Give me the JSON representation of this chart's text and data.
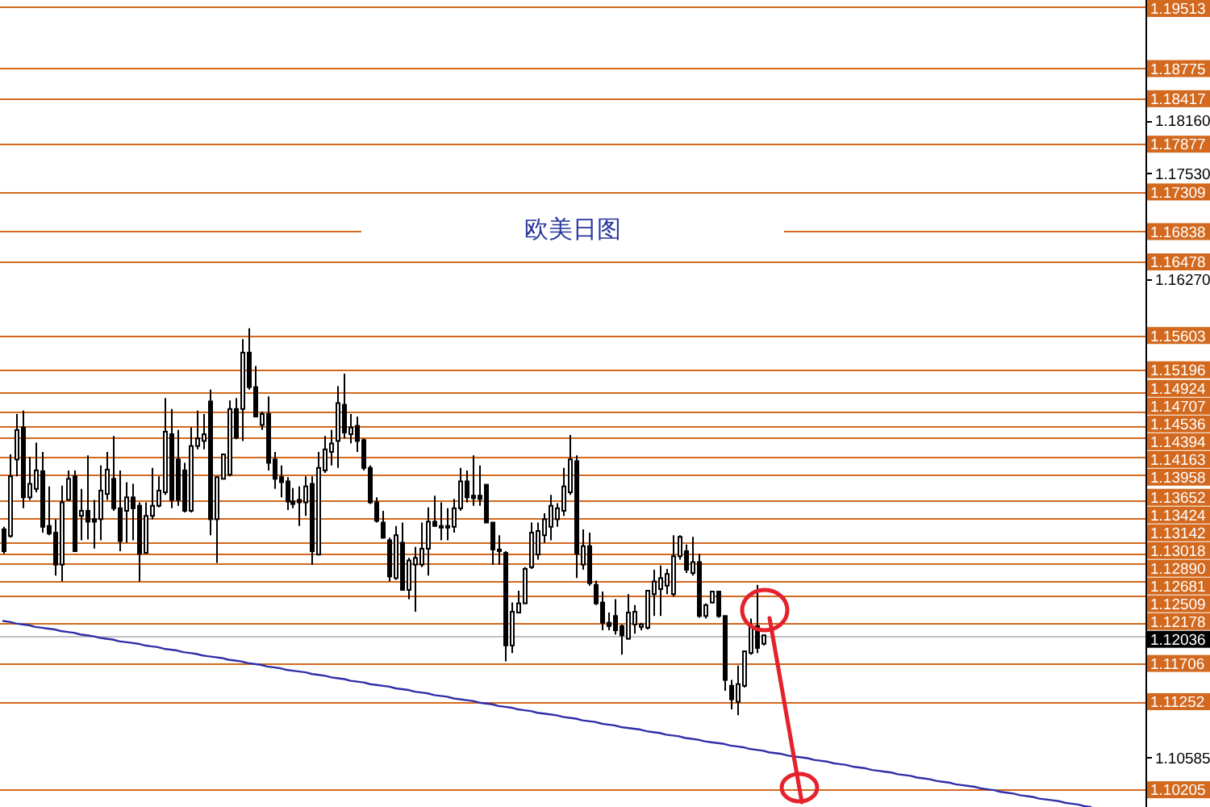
{
  "chart_data": {
    "type": "candlestick",
    "title": "欧美日图",
    "categories": [
      null,
      null,
      null,
      null,
      null,
      null,
      null,
      null,
      null,
      null,
      null,
      null,
      null,
      null,
      null,
      null,
      null,
      null,
      null,
      null,
      null,
      null,
      null,
      null,
      null,
      null,
      null,
      null,
      null,
      null,
      null,
      null,
      null,
      null,
      null,
      null,
      null,
      null,
      null,
      null,
      null,
      null,
      null,
      null,
      null,
      null,
      null,
      null,
      null,
      null,
      null,
      null,
      null,
      null,
      null,
      null,
      null,
      null,
      null,
      null,
      null,
      null,
      null,
      null,
      null,
      null,
      null,
      null,
      null,
      null,
      null,
      null,
      null,
      null,
      null,
      null,
      null,
      null,
      null,
      null,
      null,
      null,
      null,
      null,
      null,
      null,
      null,
      null,
      null,
      null,
      null,
      null,
      null,
      null,
      null,
      null,
      null,
      null,
      null,
      null,
      null,
      null,
      null,
      null,
      null,
      null,
      null,
      null,
      null,
      null,
      null,
      null,
      null,
      null,
      null,
      null,
      null,
      null,
      null,
      null,
      null,
      null,
      null,
      null,
      null,
      null,
      null,
      null,
      null,
      null,
      null,
      null,
      null,
      null,
      null,
      null,
      null,
      null,
      null,
      null,
      null,
      null,
      null,
      null,
      null,
      null,
      null,
      null,
      null,
      null,
      null,
      null,
      null,
      null,
      null,
      null,
      null,
      null,
      null,
      null,
      null,
      null,
      null,
      null,
      null,
      null,
      null,
      null,
      null,
      null,
      null,
      null,
      null,
      null,
      null,
      null,
      null,
      null
    ],
    "ohlc": [
      [
        1.133,
        1.1333,
        1.1301,
        1.1304
      ],
      [
        1.1322,
        1.1419,
        1.132,
        1.1393
      ],
      [
        1.1413,
        1.1467,
        1.1393,
        1.1448
      ],
      [
        1.1451,
        1.1471,
        1.1355,
        1.1368
      ],
      [
        1.1368,
        1.1416,
        1.1365,
        1.1384
      ],
      [
        1.1378,
        1.1433,
        1.1374,
        1.14
      ],
      [
        1.1399,
        1.1422,
        1.1326,
        1.1333
      ],
      [
        1.1334,
        1.1381,
        1.1323,
        1.1325
      ],
      [
        1.1326,
        1.1342,
        1.1275,
        1.1288
      ],
      [
        1.1288,
        1.1382,
        1.1268,
        1.1362
      ],
      [
        1.1365,
        1.14,
        1.1365,
        1.139
      ],
      [
        1.1393,
        1.14,
        1.1304,
        1.1304
      ],
      [
        1.1346,
        1.1378,
        1.1317,
        1.1352
      ],
      [
        1.1352,
        1.1418,
        1.1318,
        1.1339
      ],
      [
        1.1342,
        1.1365,
        1.1307,
        1.1339
      ],
      [
        1.1342,
        1.1406,
        1.1317,
        1.1376
      ],
      [
        1.1372,
        1.1422,
        1.1365,
        1.1401
      ],
      [
        1.139,
        1.1441,
        1.1352,
        1.1355
      ],
      [
        1.1355,
        1.14,
        1.1304,
        1.1316
      ],
      [
        1.1352,
        1.1386,
        1.1314,
        1.1368
      ],
      [
        1.1368,
        1.1384,
        1.1317,
        1.1355
      ],
      [
        1.1358,
        1.1362,
        1.1268,
        1.1301
      ],
      [
        1.1302,
        1.1362,
        1.1301,
        1.1346
      ],
      [
        1.1346,
        1.1403,
        1.1342,
        1.1358
      ],
      [
        1.1358,
        1.1393,
        1.1356,
        1.1376
      ],
      [
        1.1374,
        1.1486,
        1.1371,
        1.1446
      ],
      [
        1.1443,
        1.1473,
        1.1355,
        1.1365
      ],
      [
        1.1413,
        1.1448,
        1.1358,
        1.1365
      ],
      [
        1.14,
        1.1409,
        1.135,
        1.1352
      ],
      [
        1.1352,
        1.1451,
        1.135,
        1.1429
      ],
      [
        1.1429,
        1.1471,
        1.1425,
        1.1438
      ],
      [
        1.1435,
        1.1467,
        1.1425,
        1.1443
      ],
      [
        1.1482,
        1.1496,
        1.1323,
        1.1342
      ],
      [
        1.1342,
        1.1393,
        1.129,
        1.1392
      ],
      [
        1.139,
        1.142,
        1.139,
        1.1419
      ],
      [
        1.1395,
        1.1483,
        1.1393,
        1.1473
      ],
      [
        1.1473,
        1.1486,
        1.1437,
        1.1439
      ],
      [
        1.1473,
        1.1556,
        1.1435,
        1.154
      ],
      [
        1.154,
        1.1569,
        1.1496,
        1.1499
      ],
      [
        1.1499,
        1.1524,
        1.1464,
        1.1464
      ],
      [
        1.1454,
        1.147,
        1.1448,
        1.1467
      ],
      [
        1.1467,
        1.1488,
        1.14,
        1.1409
      ],
      [
        1.1413,
        1.1422,
        1.1378,
        1.139
      ],
      [
        1.1392,
        1.1406,
        1.1368,
        1.1386
      ],
      [
        1.1387,
        1.1392,
        1.1353,
        1.1363
      ],
      [
        1.1363,
        1.1379,
        1.1355,
        1.136
      ],
      [
        1.1365,
        1.1381,
        1.1334,
        1.1362
      ],
      [
        1.1362,
        1.1393,
        1.1346,
        1.1381
      ],
      [
        1.1384,
        1.1393,
        1.1288,
        1.1304
      ],
      [
        1.13,
        1.1422,
        1.1299,
        1.1403
      ],
      [
        1.14,
        1.1441,
        1.1397,
        1.1425
      ],
      [
        1.1422,
        1.1448,
        1.1406,
        1.1432
      ],
      [
        1.1435,
        1.15,
        1.1403,
        1.148
      ],
      [
        1.1478,
        1.1515,
        1.1438,
        1.1445
      ],
      [
        1.1443,
        1.1467,
        1.1432,
        1.1451
      ],
      [
        1.1453,
        1.1464,
        1.1422,
        1.1435
      ],
      [
        1.1436,
        1.1438,
        1.14,
        1.1403
      ],
      [
        1.1403,
        1.1406,
        1.136,
        1.1362
      ],
      [
        1.1362,
        1.1368,
        1.1338,
        1.134
      ],
      [
        1.1338,
        1.1352,
        1.1319,
        1.132
      ],
      [
        1.1317,
        1.132,
        1.1268,
        1.1274
      ],
      [
        1.1272,
        1.1334,
        1.127,
        1.1323
      ],
      [
        1.1314,
        1.1338,
        1.1258,
        1.1258
      ],
      [
        1.1258,
        1.1296,
        1.1247,
        1.1293
      ],
      [
        1.1288,
        1.1309,
        1.1232,
        1.1296
      ],
      [
        1.1288,
        1.1338,
        1.1285,
        1.1307
      ],
      [
        1.1307,
        1.1356,
        1.1275,
        1.1339
      ],
      [
        1.1339,
        1.137,
        1.1333,
        1.1334
      ],
      [
        1.1334,
        1.1362,
        1.1317,
        1.1332
      ],
      [
        1.1332,
        1.1355,
        1.1317,
        1.1334
      ],
      [
        1.1333,
        1.1366,
        1.1326,
        1.1355
      ],
      [
        1.1355,
        1.1403,
        1.1352,
        1.1387
      ],
      [
        1.1387,
        1.14,
        1.1362,
        1.1368
      ],
      [
        1.137,
        1.1418,
        1.1358,
        1.1367
      ],
      [
        1.137,
        1.1406,
        1.1358,
        1.1366
      ],
      [
        1.1383,
        1.1383,
        1.1338,
        1.1338
      ],
      [
        1.1338,
        1.1338,
        1.1288,
        1.1306
      ],
      [
        1.1306,
        1.1323,
        1.1288,
        1.1305
      ],
      [
        1.1302,
        1.1304,
        1.1173,
        1.1192
      ],
      [
        1.1192,
        1.1243,
        1.1183,
        1.1232
      ],
      [
        1.1231,
        1.1257,
        1.1231,
        1.1242
      ],
      [
        1.1242,
        1.1285,
        1.1242,
        1.1283
      ],
      [
        1.1285,
        1.1338,
        1.1283,
        1.1326
      ],
      [
        1.13,
        1.1338,
        1.1294,
        1.1328
      ],
      [
        1.1323,
        1.1349,
        1.1314,
        1.1342
      ],
      [
        1.1333,
        1.1371,
        1.1317,
        1.1358
      ],
      [
        1.1342,
        1.1361,
        1.1333,
        1.1355
      ],
      [
        1.1352,
        1.1403,
        1.1346,
        1.1381
      ],
      [
        1.1374,
        1.1442,
        1.1371,
        1.1413
      ],
      [
        1.1411,
        1.1418,
        1.1272,
        1.1301
      ],
      [
        1.1288,
        1.133,
        1.1282,
        1.131
      ],
      [
        1.131,
        1.1326,
        1.1263,
        1.1266
      ],
      [
        1.1264,
        1.1269,
        1.124,
        1.1242
      ],
      [
        1.1243,
        1.1256,
        1.121,
        1.1219
      ],
      [
        1.1219,
        1.1231,
        1.121,
        1.1215
      ],
      [
        1.1227,
        1.1247,
        1.1205,
        1.121
      ],
      [
        1.1215,
        1.1217,
        1.1181,
        1.1204
      ],
      [
        1.12,
        1.1253,
        1.1199,
        1.1231
      ],
      [
        1.1217,
        1.124,
        1.1206,
        1.1232
      ],
      [
        1.1214,
        1.1219,
        1.121,
        1.1217
      ],
      [
        1.1213,
        1.1257,
        1.1211,
        1.1257
      ],
      [
        1.1253,
        1.1282,
        1.1227,
        1.1268
      ],
      [
        1.1259,
        1.1287,
        1.1227,
        1.1272
      ],
      [
        1.1263,
        1.1283,
        1.1253,
        1.1277
      ],
      [
        1.1253,
        1.1323,
        1.125,
        1.1298
      ],
      [
        1.1298,
        1.1323,
        1.1294,
        1.1321
      ],
      [
        1.1304,
        1.1312,
        1.1278,
        1.1282
      ],
      [
        1.1278,
        1.1321,
        1.1275,
        1.1291
      ],
      [
        1.1291,
        1.1301,
        1.1225,
        1.1227
      ],
      [
        1.1227,
        1.1242,
        1.1224,
        1.124
      ],
      [
        1.1243,
        1.1257,
        1.1242,
        1.1256
      ],
      [
        1.1256,
        1.1257,
        1.1225,
        1.1227
      ],
      [
        1.1227,
        1.1227,
        1.1138,
        1.1151
      ],
      [
        1.1144,
        1.1151,
        1.1116,
        1.1128
      ],
      [
        1.1125,
        1.1168,
        1.1109,
        1.1146
      ],
      [
        1.1144,
        1.1186,
        1.1142,
        1.1185
      ],
      [
        1.1183,
        1.1224,
        1.1181,
        1.1215
      ],
      [
        1.1215,
        1.1264,
        1.1183,
        1.1189
      ],
      [
        1.1194,
        1.1205,
        1.1192,
        1.1204
      ],
      null,
      null,
      null,
      null,
      null,
      null,
      null,
      null,
      null,
      null,
      null,
      null,
      null,
      null,
      null,
      null,
      null,
      null,
      null,
      null,
      null,
      null,
      null,
      null,
      null,
      null,
      null,
      null,
      null,
      null,
      null,
      null,
      null,
      null,
      null,
      null,
      null,
      null,
      null,
      null,
      null,
      null,
      null,
      null,
      null,
      null,
      null,
      null,
      null,
      null,
      null,
      null,
      null,
      null,
      null,
      null,
      null,
      null,
      null
    ],
    "series": [
      {
        "type": "line",
        "color": "#2e2ea8",
        "values": [
          1.1221,
          1.122,
          1.1218,
          1.1217,
          1.1216,
          1.1214,
          1.1213,
          1.1212,
          1.1211,
          1.1209,
          1.1208,
          1.1207,
          1.1205,
          1.1204,
          1.1203,
          1.1201,
          1.12,
          1.1199,
          1.1197,
          1.1196,
          1.1195,
          1.1194,
          1.1192,
          1.1191,
          1.119,
          1.1188,
          1.1187,
          1.1186,
          1.1184,
          1.1183,
          1.1182,
          1.118,
          1.1179,
          1.1178,
          1.1177,
          1.1175,
          1.1174,
          1.1173,
          1.1171,
          1.117,
          1.1169,
          1.1167,
          1.1166,
          1.1165,
          1.1163,
          1.1162,
          1.1161,
          1.116,
          1.1158,
          1.1157,
          1.1156,
          1.1154,
          1.1153,
          1.1152,
          1.115,
          1.1149,
          1.1148,
          1.1146,
          1.1145,
          1.1144,
          1.1143,
          1.1141,
          1.114,
          1.1139,
          1.1137,
          1.1136,
          1.1135,
          1.1133,
          1.1132,
          1.1131,
          1.1129,
          1.1128,
          1.1127,
          1.1126,
          1.1124,
          1.1123,
          1.1122,
          1.112,
          1.1119,
          1.1118,
          1.1116,
          1.1115,
          1.1114,
          1.1112,
          1.1111,
          1.111,
          1.1109,
          1.1107,
          1.1106,
          1.1105,
          1.1103,
          1.1102,
          1.1101,
          1.1099,
          1.1098,
          1.1097,
          1.1095,
          1.1094,
          1.1093,
          1.1092,
          1.109,
          1.1089,
          1.1088,
          1.1086,
          1.1085,
          1.1084,
          1.1082,
          1.1081,
          1.108,
          1.1078,
          1.1077,
          1.1076,
          1.1075,
          1.1073,
          1.1072,
          1.1071,
          1.1069,
          1.1068,
          1.1067,
          1.1065,
          1.1064,
          1.1063,
          1.1061,
          1.106,
          1.1059,
          1.1058,
          1.1056,
          1.1055,
          1.1054,
          1.1052,
          1.1051,
          1.105,
          1.1048,
          1.1047,
          1.1046,
          1.1044,
          1.1043,
          1.1042,
          1.1041,
          1.1039,
          1.1038,
          1.1037,
          1.1035,
          1.1034,
          1.1033,
          1.1031,
          1.103,
          1.1029,
          1.1027,
          1.1026,
          1.1025,
          1.1024,
          1.1022,
          1.1021,
          1.102,
          1.1018,
          1.1017,
          1.1016,
          1.1014,
          1.1013,
          1.1012,
          1.101,
          1.1009,
          1.1008,
          1.1007,
          1.1005,
          1.1004,
          1.1003,
          1.1001,
          1.1,
          null,
          null,
          null,
          null,
          null,
          null,
          null,
          null
        ]
      }
    ],
    "ylim": [
      1.1,
      1.1959
    ],
    "yticks": [
      {
        "value": 1.1816,
        "label": "1.18160"
      },
      {
        "value": 1.1753,
        "label": "1.17530"
      },
      {
        "value": 1.1627,
        "label": "1.16270"
      },
      {
        "value": 1.10585,
        "label": "1.10585"
      }
    ],
    "ref_lines": [
      {
        "axis": "y",
        "value": 1.19513,
        "label": "1.19513",
        "color": "#d2691e"
      },
      {
        "axis": "y",
        "value": 1.18775,
        "label": "1.18775",
        "color": "#d2691e"
      },
      {
        "axis": "y",
        "value": 1.18417,
        "label": "1.18417",
        "color": "#d2691e"
      },
      {
        "axis": "y",
        "value": 1.17877,
        "label": "1.17877",
        "color": "#d2691e"
      },
      {
        "axis": "y",
        "value": 1.17309,
        "label": "1.17309",
        "color": "#d2691e"
      },
      {
        "axis": "y",
        "value": 1.16838,
        "label": "1.16838",
        "color": "#d2691e"
      },
      {
        "axis": "y",
        "value": 1.16478,
        "label": "1.16478",
        "color": "#d2691e"
      },
      {
        "axis": "y",
        "value": 1.15603,
        "label": "1.15603",
        "color": "#d2691e"
      },
      {
        "axis": "y",
        "value": 1.15196,
        "label": "1.15196",
        "color": "#d2691e"
      },
      {
        "axis": "y",
        "value": 1.14924,
        "label": "1.14924",
        "color": "#d2691e"
      },
      {
        "axis": "y",
        "value": 1.14707,
        "label": "1.14707",
        "color": "#d2691e"
      },
      {
        "axis": "y",
        "value": 1.14536,
        "label": "1.14536",
        "color": "#d2691e"
      },
      {
        "axis": "y",
        "value": 1.14394,
        "label": "1.14394",
        "color": "#d2691e"
      },
      {
        "axis": "y",
        "value": 1.14163,
        "label": "1.14163",
        "color": "#d2691e"
      },
      {
        "axis": "y",
        "value": 1.13958,
        "label": "1.13958",
        "color": "#d2691e"
      },
      {
        "axis": "y",
        "value": 1.13652,
        "label": "1.13652",
        "color": "#d2691e"
      },
      {
        "axis": "y",
        "value": 1.13424,
        "label": "1.13424",
        "color": "#d2691e"
      },
      {
        "axis": "y",
        "value": 1.13142,
        "label": "1.13142",
        "color": "#d2691e"
      },
      {
        "axis": "y",
        "value": 1.13018,
        "label": "1.13018",
        "color": "#d2691e"
      },
      {
        "axis": "y",
        "value": 1.1289,
        "label": "1.12890",
        "color": "#d2691e"
      },
      {
        "axis": "y",
        "value": 1.12681,
        "label": "1.12681",
        "color": "#d2691e"
      },
      {
        "axis": "y",
        "value": 1.12509,
        "label": "1.12509",
        "color": "#d2691e"
      },
      {
        "axis": "y",
        "value": 1.12178,
        "label": "1.12178",
        "color": "#d2691e"
      },
      {
        "axis": "y",
        "value": 1.12036,
        "label": "1.12036",
        "color": "#c0c0c0"
      },
      {
        "axis": "y",
        "value": 1.11706,
        "label": "1.11706",
        "color": "#d2691e"
      },
      {
        "axis": "y",
        "value": 1.11252,
        "label": "1.11252",
        "color": "#d2691e"
      },
      {
        "axis": "y",
        "value": 1.10205,
        "label": "1.10205",
        "color": "#d2691e"
      }
    ]
  }
}
